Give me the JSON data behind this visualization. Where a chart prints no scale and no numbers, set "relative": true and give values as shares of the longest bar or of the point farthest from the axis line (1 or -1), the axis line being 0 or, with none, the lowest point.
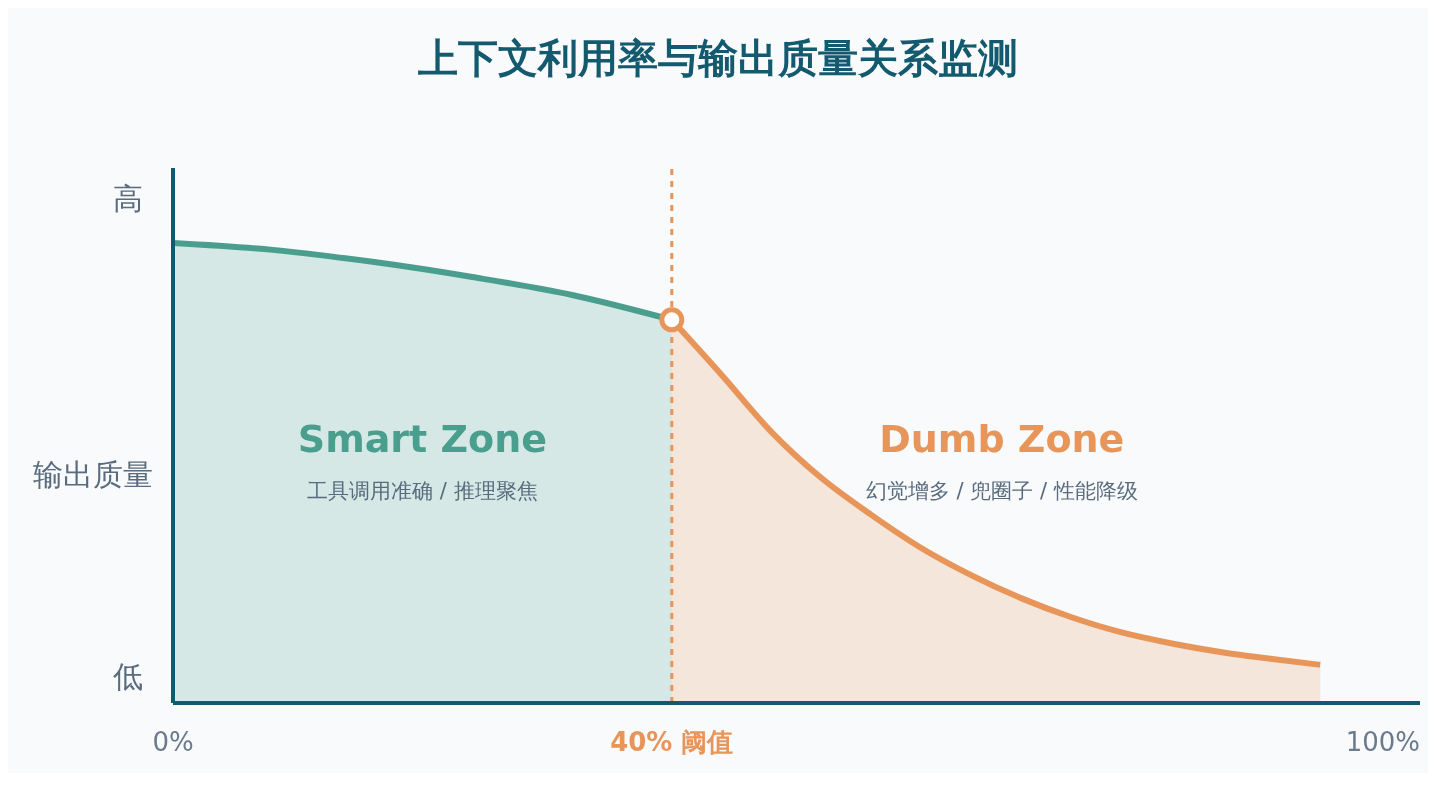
{
  "chart_data": {
    "type": "area",
    "title": "上下文利用率与输出质量关系监测",
    "ylabel": "输出质量",
    "relative": true,
    "xlim": [
      0,
      100
    ],
    "xticks": [
      {
        "value": 0,
        "label": "0%"
      },
      {
        "value": 40,
        "label": "40% 阈值"
      },
      {
        "value": 100,
        "label": "100%"
      }
    ],
    "series": [
      {
        "name": "Smart Zone",
        "color": "#4a9e8e",
        "x": [
          0,
          8,
          16,
          24,
          32,
          40
        ],
        "values": [
          1.0,
          0.985,
          0.959,
          0.926,
          0.887,
          0.833
        ]
      },
      {
        "name": "Dumb Zone",
        "color": "#e8955a",
        "x": [
          40,
          44,
          48,
          52,
          56,
          60,
          64,
          68,
          72,
          76,
          80,
          84,
          88,
          92
        ],
        "values": [
          0.833,
          0.713,
          0.589,
          0.489,
          0.409,
          0.337,
          0.278,
          0.228,
          0.187,
          0.154,
          0.13,
          0.111,
          0.096,
          0.083
        ]
      },
      {
        "type": "scatter",
        "color": "#e8955a",
        "marker": "circle",
        "x": [
          40
        ],
        "values": [
          0.833
        ]
      }
    ],
    "ref_lines": [
      {
        "axis": "x",
        "value": 40,
        "color": "#e8955a",
        "line_style": "dashed"
      }
    ],
    "annotations": [
      "高",
      "低",
      "工具调用准确 / 推理聚焦",
      "幻觉增多 / 兜圈子 / 性能降级"
    ]
  }
}
